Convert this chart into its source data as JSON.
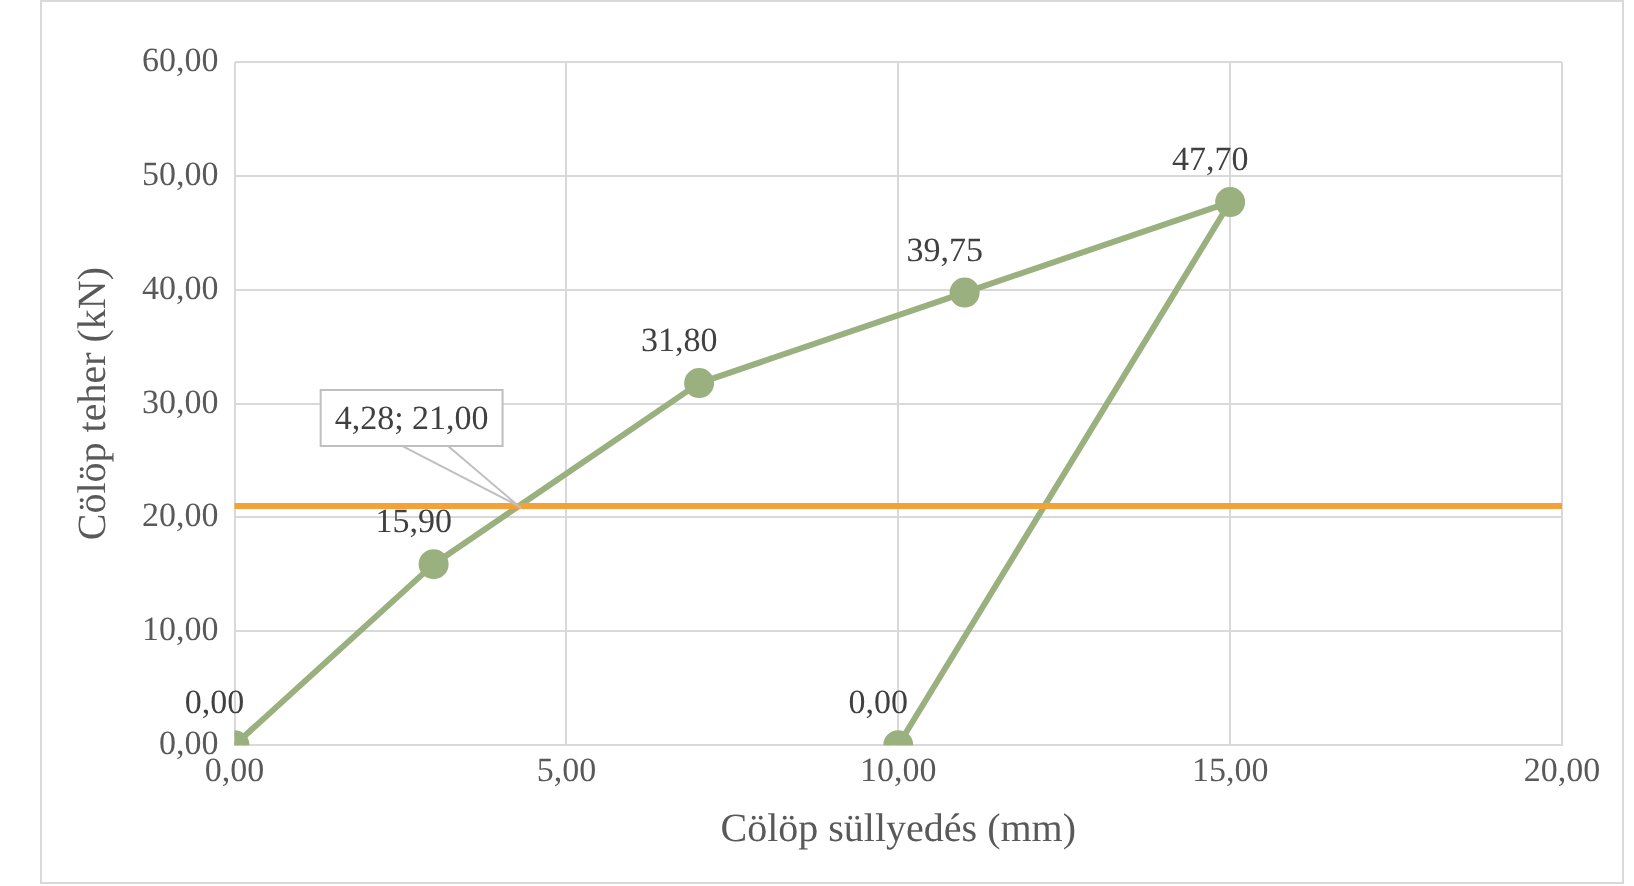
{
  "chart_data": {
    "type": "line",
    "xlabel": "Cölöp süllyedés (mm)",
    "ylabel": "Cölöp teher (kN)",
    "x": [
      0,
      3,
      7,
      11,
      15,
      10
    ],
    "series": [
      {
        "color": "#9bb07f",
        "values": [
          0,
          15.9,
          31.8,
          39.75,
          47.7,
          0
        ],
        "value_labels": [
          "0,00",
          "15,90",
          "31,80",
          "39,75",
          "47,70",
          "0,00"
        ]
      }
    ],
    "xlim": [
      0,
      20
    ],
    "xticks": [
      {
        "value": 0,
        "label": "0,00"
      },
      {
        "value": 5,
        "label": "5,00"
      },
      {
        "value": 10,
        "label": "10,00"
      },
      {
        "value": 15,
        "label": "15,00"
      },
      {
        "value": 20,
        "label": "20,00"
      }
    ],
    "ylim": [
      0,
      60
    ],
    "yticks": [
      {
        "value": 0,
        "label": "0,00"
      },
      {
        "value": 10,
        "label": "10,00"
      },
      {
        "value": 20,
        "label": "20,00"
      },
      {
        "value": 30,
        "label": "30,00"
      },
      {
        "value": 40,
        "label": "40,00"
      },
      {
        "value": 50,
        "label": "50,00"
      },
      {
        "value": 60,
        "label": "60,00"
      }
    ],
    "ref_lines": [
      {
        "axis": "y",
        "value": 21,
        "color": "#f4a236"
      }
    ],
    "annotations": [
      {
        "text": "4,28; 21,00",
        "x": 4.28,
        "y": 21
      }
    ],
    "grid": true,
    "legend": false,
    "marker": "circle",
    "line_style": "solid"
  }
}
